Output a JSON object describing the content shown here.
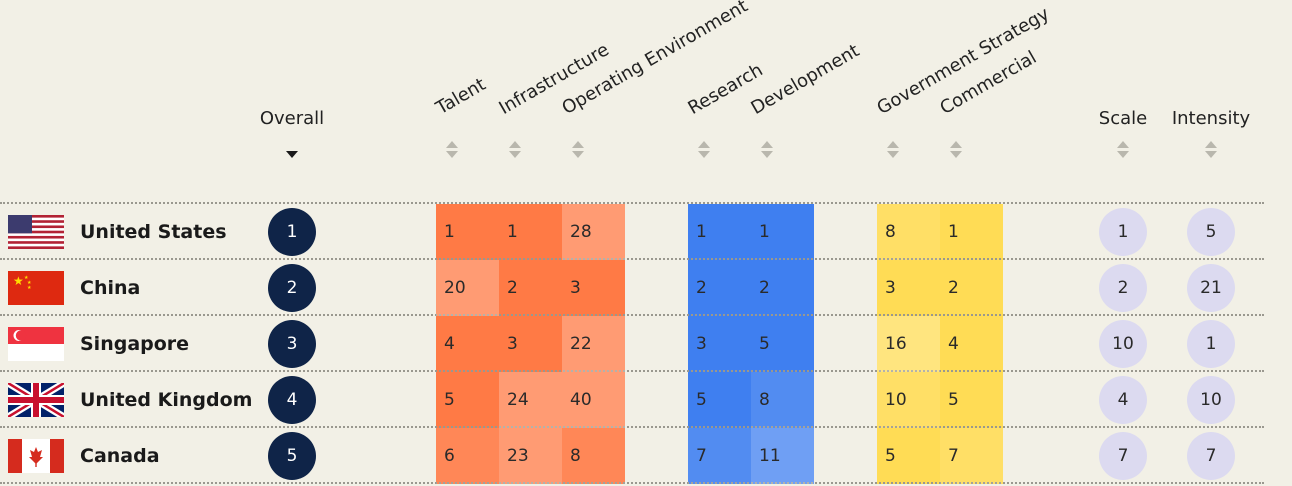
{
  "chart_data": {
    "type": "table",
    "columns": [
      {
        "key": "overall",
        "label": "Overall",
        "group": "overall",
        "sorted": true
      },
      {
        "key": "talent",
        "label": "Talent",
        "group": "implementation"
      },
      {
        "key": "infrastructure",
        "label": "Infrastructure",
        "group": "implementation"
      },
      {
        "key": "operating_environment",
        "label": "Operating Environment",
        "group": "implementation"
      },
      {
        "key": "research",
        "label": "Research",
        "group": "innovation"
      },
      {
        "key": "development",
        "label": "Development",
        "group": "innovation"
      },
      {
        "key": "government_strategy",
        "label": "Government Strategy",
        "group": "investment"
      },
      {
        "key": "commercial",
        "label": "Commercial",
        "group": "investment"
      },
      {
        "key": "scale",
        "label": "Scale",
        "group": "size"
      },
      {
        "key": "intensity",
        "label": "Intensity",
        "group": "size"
      }
    ],
    "rows": [
      {
        "country": "United States",
        "flag": "us-flag",
        "overall": 1,
        "talent": 1,
        "infrastructure": 1,
        "operating_environment": 28,
        "research": 1,
        "development": 1,
        "government_strategy": 8,
        "commercial": 1,
        "scale": 1,
        "intensity": 5
      },
      {
        "country": "China",
        "flag": "cn-flag",
        "overall": 2,
        "talent": 20,
        "infrastructure": 2,
        "operating_environment": 3,
        "research": 2,
        "development": 2,
        "government_strategy": 3,
        "commercial": 2,
        "scale": 2,
        "intensity": 21
      },
      {
        "country": "Singapore",
        "flag": "sg-flag",
        "overall": 3,
        "talent": 4,
        "infrastructure": 3,
        "operating_environment": 22,
        "research": 3,
        "development": 5,
        "government_strategy": 16,
        "commercial": 4,
        "scale": 10,
        "intensity": 1
      },
      {
        "country": "United Kingdom",
        "flag": "uk-flag",
        "overall": 4,
        "talent": 5,
        "infrastructure": 24,
        "operating_environment": 40,
        "research": 5,
        "development": 8,
        "government_strategy": 10,
        "commercial": 5,
        "scale": 4,
        "intensity": 10
      },
      {
        "country": "Canada",
        "flag": "ca-flag",
        "overall": 5,
        "talent": 6,
        "infrastructure": 23,
        "operating_environment": 8,
        "research": 7,
        "development": 11,
        "government_strategy": 5,
        "commercial": 7,
        "scale": 7,
        "intensity": 7
      }
    ],
    "colors": {
      "implementation": "#ff7a45",
      "innovation": "#3f7ff0",
      "investment": "#ffdc55",
      "overall_circle": "#0f2448",
      "light_circle": "#dcdaf0",
      "background": "#f2f0e6"
    }
  }
}
